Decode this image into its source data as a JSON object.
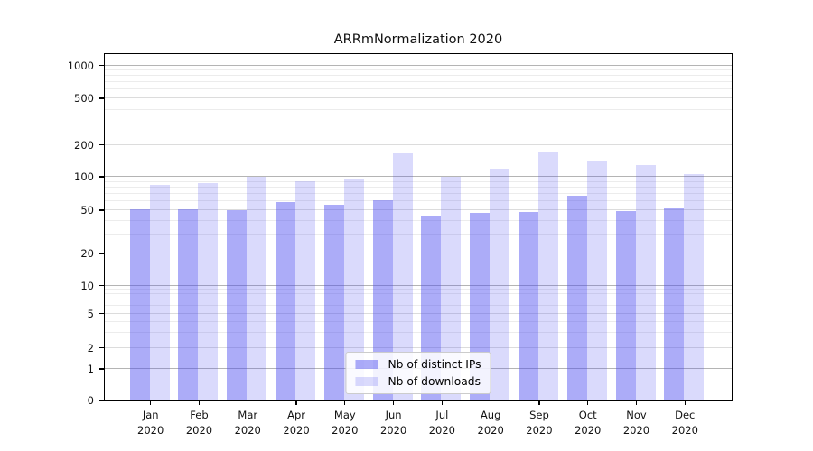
{
  "chart_data": {
    "type": "bar",
    "title": "ARRmNormalization 2020",
    "categories": [
      "Jan",
      "Feb",
      "Mar",
      "Apr",
      "May",
      "Jun",
      "Jul",
      "Aug",
      "Sep",
      "Oct",
      "Nov",
      "Dec"
    ],
    "x_tick_year": "2020",
    "series": [
      {
        "name": "Nb of distinct IPs",
        "color": "rgba(70,70,240,0.45)",
        "values": [
          51,
          51,
          50,
          59,
          56,
          61,
          44,
          47,
          48,
          67,
          49,
          52
        ]
      },
      {
        "name": "Nb of downloads",
        "color": "rgba(70,70,240,0.20)",
        "values": [
          84,
          87,
          101,
          91,
          97,
          166,
          100,
          120,
          169,
          139,
          128,
          107
        ]
      }
    ],
    "y_ticks": [
      0,
      1,
      2,
      5,
      10,
      20,
      50,
      100,
      200,
      500,
      1000
    ],
    "y_scale": "symlog (log above 1, linear 0-1, 0 shown at baseline)",
    "ylim": [
      0,
      1260
    ],
    "grid": true,
    "legend_position": "lower center",
    "colors": {
      "grid_major": "#b4b4b4",
      "grid_labeled_minor": "#dcdcdc",
      "grid_minor": "#ececec",
      "spine": "#000000"
    }
  }
}
